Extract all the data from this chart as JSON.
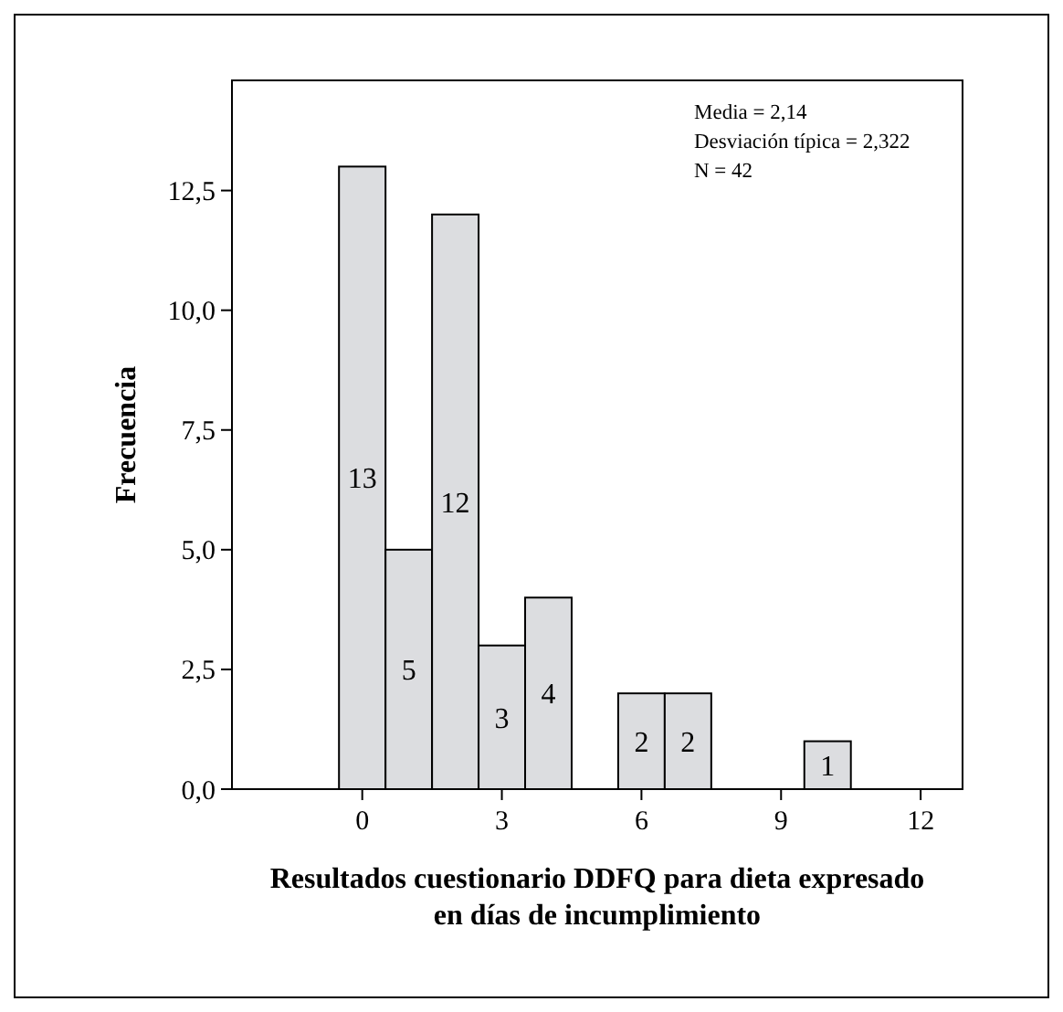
{
  "chart_data": {
    "type": "histogram",
    "xlabel": "Resultados cuestionario DDFQ para dieta expresado\nen días de incumplimiento",
    "ylabel": "Frecuencia",
    "bins": [
      -0.5,
      0.5,
      1.5,
      2.5,
      3.5,
      4.5,
      5.5,
      6.5,
      7.5,
      8.5,
      9.5,
      10.5
    ],
    "values": [
      13,
      5,
      12,
      3,
      4,
      0,
      2,
      2,
      0,
      0,
      1
    ],
    "color": "#dcdde0",
    "value_labels": [
      "13",
      "5",
      "12",
      "3",
      "4",
      null,
      "2",
      "2",
      null,
      null,
      "1"
    ],
    "xlim": [
      -2.8,
      12.9
    ],
    "xticks": [
      0,
      3,
      6,
      9,
      12
    ],
    "ylim": [
      0,
      14.8
    ],
    "yticks": [
      {
        "value": 0,
        "label": "0,0"
      },
      {
        "value": 2.5,
        "label": "2,5"
      },
      {
        "value": 5,
        "label": "5,0"
      },
      {
        "value": 7.5,
        "label": "7,5"
      },
      {
        "value": 10,
        "label": "10,0"
      },
      {
        "value": 12.5,
        "label": "12,5"
      }
    ],
    "annotations": [
      "Media = 2,14",
      "Desviación típica = 2,322",
      "N = 42"
    ]
  }
}
